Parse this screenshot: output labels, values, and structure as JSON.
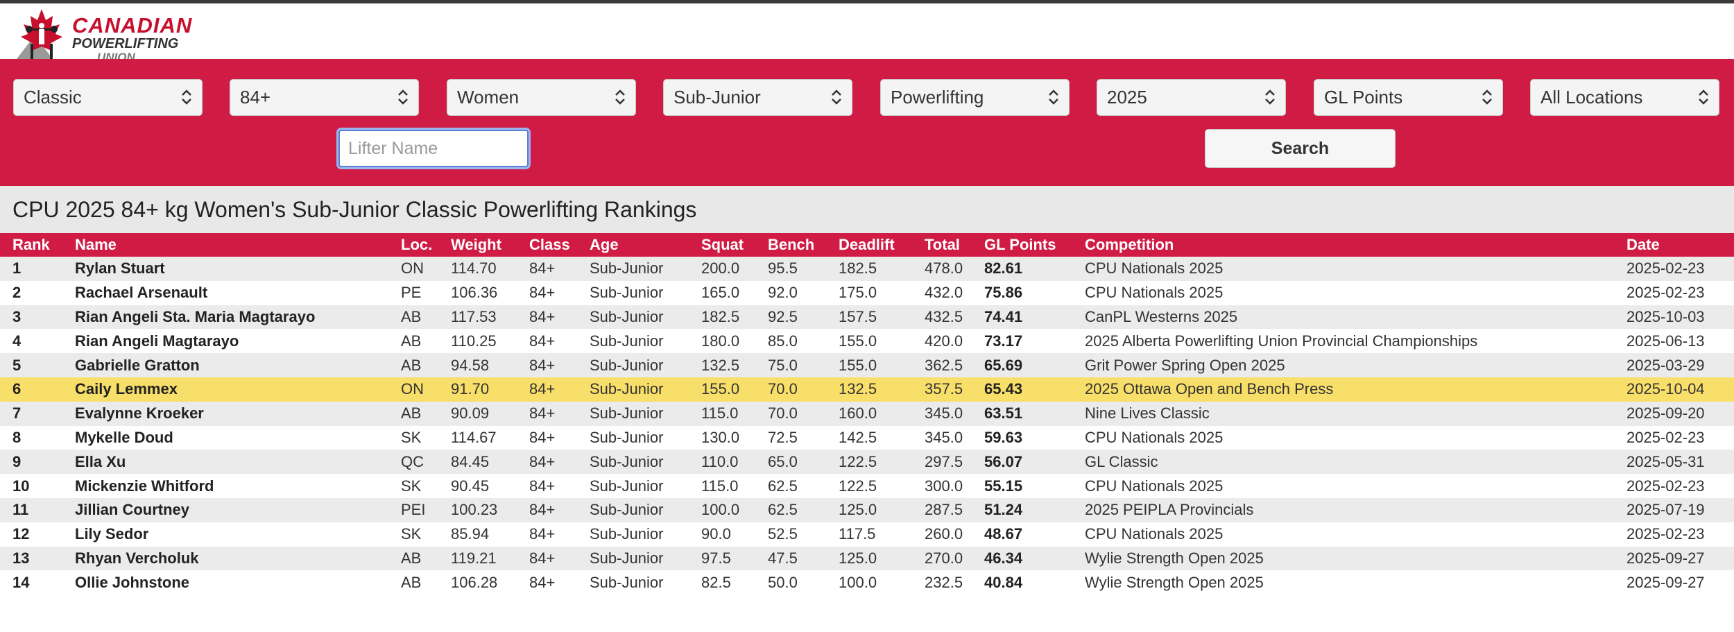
{
  "logo": {
    "line1": "CANADIAN",
    "line2": "POWERLIFTING",
    "line3": "UNION",
    "icon": "maple-leaf-lifter-icon"
  },
  "colors": {
    "brand_red": "#d01c45",
    "highlight": "#f8df6a",
    "row_alt": "#ebebeb"
  },
  "filters": {
    "selects": [
      {
        "name": "division-select",
        "value": "Classic"
      },
      {
        "name": "weight-class-select",
        "value": "84+"
      },
      {
        "name": "sex-select",
        "value": "Women"
      },
      {
        "name": "age-class-select",
        "value": "Sub-Junior"
      },
      {
        "name": "event-select",
        "value": "Powerlifting"
      },
      {
        "name": "year-select",
        "value": "2025"
      },
      {
        "name": "sort-select",
        "value": "GL Points"
      },
      {
        "name": "location-select",
        "value": "All Locations"
      }
    ],
    "lifter_placeholder": "Lifter Name",
    "search_label": "Search"
  },
  "title": "CPU 2025 84+ kg Women's Sub-Junior Classic Powerlifting Rankings",
  "table": {
    "headers": [
      "Rank",
      "Name",
      "Loc.",
      "Weight",
      "Class",
      "Age",
      "Squat",
      "Bench",
      "Deadlift",
      "Total",
      "GL Points",
      "Competition",
      "Date"
    ],
    "rows": [
      [
        "1",
        "Rylan Stuart",
        "ON",
        "114.70",
        "84+",
        "Sub-Junior",
        "200.0",
        "95.5",
        "182.5",
        "478.0",
        "82.61",
        "CPU Nationals 2025",
        "2025-02-23"
      ],
      [
        "2",
        "Rachael Arsenault",
        "PE",
        "106.36",
        "84+",
        "Sub-Junior",
        "165.0",
        "92.0",
        "175.0",
        "432.0",
        "75.86",
        "CPU Nationals 2025",
        "2025-02-23"
      ],
      [
        "3",
        "Rian Angeli Sta. Maria Magtarayo",
        "AB",
        "117.53",
        "84+",
        "Sub-Junior",
        "182.5",
        "92.5",
        "157.5",
        "432.5",
        "74.41",
        "CanPL Westerns 2025",
        "2025-10-03"
      ],
      [
        "4",
        "Rian Angeli Magtarayo",
        "AB",
        "110.25",
        "84+",
        "Sub-Junior",
        "180.0",
        "85.0",
        "155.0",
        "420.0",
        "73.17",
        "2025 Alberta Powerlifting Union Provincial Championships",
        "2025-06-13"
      ],
      [
        "5",
        "Gabrielle Gratton",
        "AB",
        "94.58",
        "84+",
        "Sub-Junior",
        "132.5",
        "75.0",
        "155.0",
        "362.5",
        "65.69",
        "Grit Power Spring Open 2025",
        "2025-03-29"
      ],
      [
        "6",
        "Caily Lemmex",
        "ON",
        "91.70",
        "84+",
        "Sub-Junior",
        "155.0",
        "70.0",
        "132.5",
        "357.5",
        "65.43",
        "2025 Ottawa Open and Bench Press",
        "2025-10-04"
      ],
      [
        "7",
        "Evalynne Kroeker",
        "AB",
        "90.09",
        "84+",
        "Sub-Junior",
        "115.0",
        "70.0",
        "160.0",
        "345.0",
        "63.51",
        "Nine Lives Classic",
        "2025-09-20"
      ],
      [
        "8",
        "Mykelle Doud",
        "SK",
        "114.67",
        "84+",
        "Sub-Junior",
        "130.0",
        "72.5",
        "142.5",
        "345.0",
        "59.63",
        "CPU Nationals 2025",
        "2025-02-23"
      ],
      [
        "9",
        "Ella Xu",
        "QC",
        "84.45",
        "84+",
        "Sub-Junior",
        "110.0",
        "65.0",
        "122.5",
        "297.5",
        "56.07",
        "GL Classic",
        "2025-05-31"
      ],
      [
        "10",
        "Mickenzie Whitford",
        "SK",
        "90.45",
        "84+",
        "Sub-Junior",
        "115.0",
        "62.5",
        "122.5",
        "300.0",
        "55.15",
        "CPU Nationals 2025",
        "2025-02-23"
      ],
      [
        "11",
        "Jillian Courtney",
        "PEI",
        "100.23",
        "84+",
        "Sub-Junior",
        "100.0",
        "62.5",
        "125.0",
        "287.5",
        "51.24",
        "2025 PEIPLA Provincials",
        "2025-07-19"
      ],
      [
        "12",
        "Lily Sedor",
        "SK",
        "85.94",
        "84+",
        "Sub-Junior",
        "90.0",
        "52.5",
        "117.5",
        "260.0",
        "48.67",
        "CPU Nationals 2025",
        "2025-02-23"
      ],
      [
        "13",
        "Rhyan Vercholuk",
        "AB",
        "119.21",
        "84+",
        "Sub-Junior",
        "97.5",
        "47.5",
        "125.0",
        "270.0",
        "46.34",
        "Wylie Strength Open 2025",
        "2025-09-27"
      ],
      [
        "14",
        "Ollie Johnstone",
        "AB",
        "106.28",
        "84+",
        "Sub-Junior",
        "82.5",
        "50.0",
        "100.0",
        "232.5",
        "40.84",
        "Wylie Strength Open 2025",
        "2025-09-27"
      ]
    ],
    "highlighted_rank": "6"
  }
}
